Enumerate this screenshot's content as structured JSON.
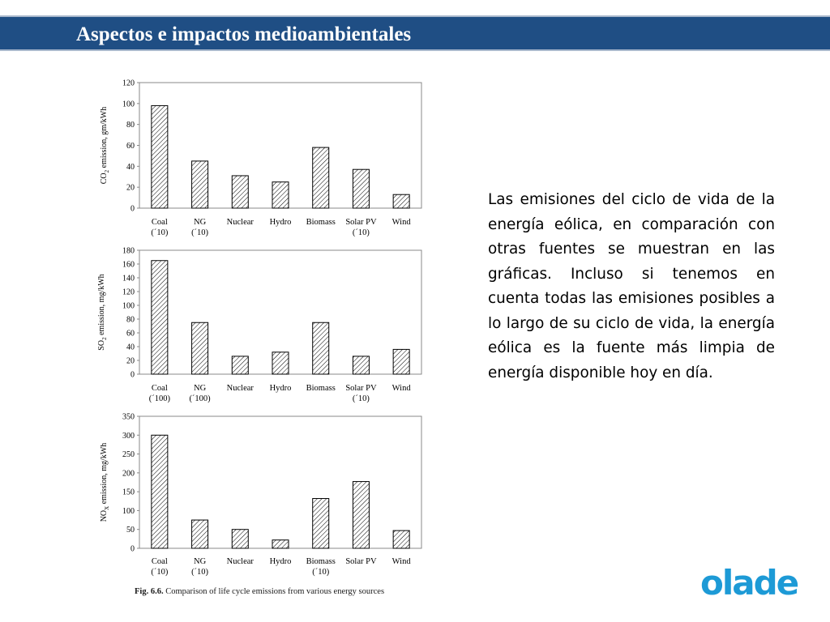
{
  "header": {
    "title": "Aspectos e impactos medioambientales"
  },
  "body_text": "Las emisiones del ciclo de vida de la energía eólica, en comparación con otras fuentes se muestran en las gráficas. Incluso si tenemos en cuenta todas las emisiones posibles a lo largo de su ciclo de vida, la energía eólica es la fuente más limpia de energía disponible hoy en día.",
  "caption": {
    "prefix": "Fig. 6.6.",
    "text": " Comparison of life cycle emissions from various energy sources"
  },
  "logo": {
    "text": "olade",
    "color": "#1d9ad6"
  },
  "chart_data": [
    {
      "type": "bar",
      "ylabel_main": "CO",
      "ylabel_sub": "2",
      "ylabel_rest": " emission, gm/kWh",
      "categories": [
        "Coal",
        "NG",
        "Nuclear",
        "Hydro",
        "Biomass",
        "Solar PV",
        "Wind"
      ],
      "category_sublabels": [
        "(´10)",
        "(´10)",
        "",
        "",
        "",
        "(´10)",
        ""
      ],
      "values": [
        98,
        45,
        31,
        25,
        58,
        37,
        13
      ],
      "ylim": [
        0,
        120
      ],
      "yticks": [
        0,
        20,
        40,
        60,
        80,
        100,
        120
      ],
      "bar_pattern": "diagonal-hatch"
    },
    {
      "type": "bar",
      "ylabel_main": "SO",
      "ylabel_sub": "2",
      "ylabel_rest": " emission, mg/kWh",
      "categories": [
        "Coal",
        "NG",
        "Nuclear",
        "Hydro",
        "Biomass",
        "Solar PV",
        "Wind"
      ],
      "category_sublabels": [
        "(´100)",
        "(´100)",
        "",
        "",
        "",
        "(´10)",
        ""
      ],
      "values": [
        165,
        75,
        26,
        32,
        75,
        26,
        36
      ],
      "ylim": [
        0,
        180
      ],
      "yticks": [
        0,
        20,
        40,
        60,
        80,
        100,
        120,
        140,
        160,
        180
      ],
      "bar_pattern": "diagonal-hatch"
    },
    {
      "type": "bar",
      "ylabel_main": "NO",
      "ylabel_sub": "X",
      "ylabel_rest": " emission, mg/kWh",
      "categories": [
        "Coal",
        "NG",
        "Nuclear",
        "Hydro",
        "Biomass",
        "Solar PV",
        "Wind"
      ],
      "category_sublabels": [
        "(´10)",
        "(´10)",
        "",
        "",
        "(´10)",
        "",
        ""
      ],
      "values": [
        300,
        75,
        50,
        22,
        132,
        177,
        47
      ],
      "ylim": [
        0,
        350
      ],
      "yticks": [
        0,
        50,
        100,
        150,
        200,
        250,
        300,
        350
      ],
      "bar_pattern": "diagonal-hatch"
    }
  ]
}
